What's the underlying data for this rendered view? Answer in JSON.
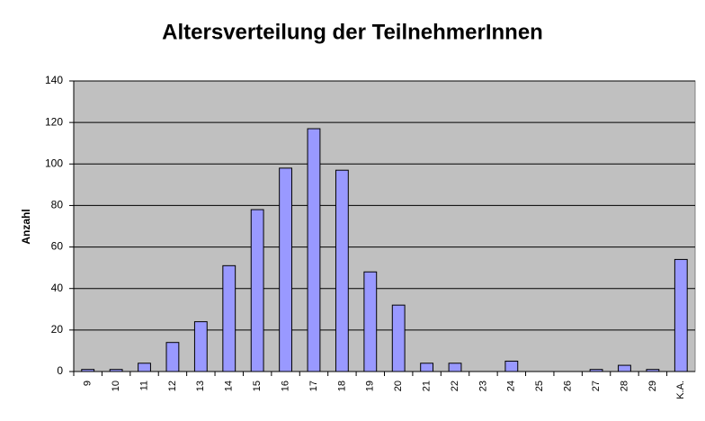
{
  "chart_data": {
    "type": "bar",
    "title": "Altersverteilung der TeilnehmerInnen",
    "y_label": "Anzahl",
    "categories": [
      "9",
      "10",
      "11",
      "12",
      "13",
      "14",
      "15",
      "16",
      "17",
      "18",
      "19",
      "20",
      "21",
      "22",
      "23",
      "24",
      "25",
      "26",
      "27",
      "28",
      "29",
      "K.A."
    ],
    "values": [
      1,
      1,
      4,
      14,
      24,
      51,
      78,
      98,
      117,
      97,
      48,
      32,
      4,
      4,
      0,
      5,
      0,
      0,
      1,
      3,
      1,
      54
    ],
    "color": "#9999ff",
    "plot_background": "#c0c0c0",
    "ylim": [
      0,
      140
    ],
    "yticks": [
      0,
      20,
      40,
      60,
      80,
      100,
      120,
      140
    ],
    "grid": true
  }
}
